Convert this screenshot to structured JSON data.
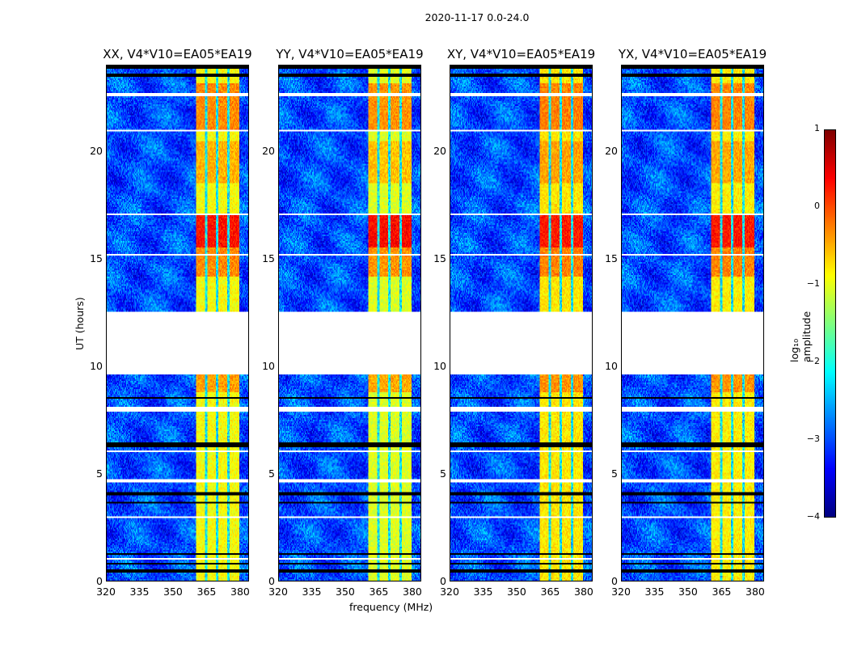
{
  "chart_data": {
    "type": "heatmap",
    "title": "2020-11-17 0.0-24.0",
    "xlabel": "frequency (MHz)",
    "ylabel": "UT (hours)",
    "xlim": [
      320,
      384
    ],
    "ylim": [
      0,
      24
    ],
    "xticks": [
      "320",
      "335",
      "350",
      "365",
      "380"
    ],
    "xtick_values": [
      320,
      335,
      350,
      365,
      380
    ],
    "yticks": [
      "0",
      "5",
      "10",
      "15",
      "20"
    ],
    "ytick_values": [
      0,
      5,
      10,
      15,
      20
    ],
    "panels": [
      {
        "title": "XX, V4*V10=EA05*EA19",
        "strength": 1.0
      },
      {
        "title": "YY, V4*V10=EA05*EA19",
        "strength": 1.15
      },
      {
        "title": "XY, V4*V10=EA05*EA19",
        "strength": 0.85
      },
      {
        "title": "YX, V4*V10=EA05*EA19",
        "strength": 0.9
      }
    ],
    "signal_band_mhz": [
      360.4,
      380.0
    ],
    "subband_edges_mhz": [
      365,
      370,
      375
    ],
    "background_log_amp": -3.0,
    "band_log_amp": -0.9,
    "active_intervals_hours": [
      {
        "range": [
          15.5,
          17.0
        ],
        "log_amp": 0.3
      },
      {
        "range": [
          14.2,
          15.5
        ],
        "log_amp": -0.3
      },
      {
        "range": [
          18.5,
          20.5
        ],
        "log_amp": -0.5
      },
      {
        "range": [
          21.0,
          23.2
        ],
        "log_amp": -0.3
      },
      {
        "range": [
          8.8,
          9.6
        ],
        "log_amp": -0.4
      }
    ],
    "no_data_hours": [
      [
        12.4,
        12.55
      ],
      [
        9.6,
        12.35
      ],
      [
        7.9,
        8.1
      ],
      [
        8.3,
        8.35
      ],
      [
        15.15,
        15.25
      ],
      [
        17.0,
        17.1
      ],
      [
        20.9,
        21.0
      ],
      [
        22.6,
        22.7
      ],
      [
        4.6,
        4.7
      ],
      [
        2.9,
        3.0
      ],
      [
        1.0,
        1.05
      ],
      [
        6.0,
        6.05
      ],
      [
        5.6,
        5.65
      ]
    ],
    "zero_hours": [
      [
        6.2,
        6.45
      ],
      [
        0.4,
        0.55
      ],
      [
        0.75,
        0.85
      ],
      [
        3.6,
        3.7
      ],
      [
        4.0,
        4.1
      ],
      [
        5.15,
        5.2
      ],
      [
        23.5,
        23.6
      ],
      [
        23.85,
        24.0
      ],
      [
        8.5,
        8.55
      ],
      [
        12.35,
        12.4
      ],
      [
        1.2,
        1.25
      ]
    ],
    "colorbar": {
      "label": "log₁₀ amplitude",
      "range": [
        -4,
        1
      ],
      "ticks": [
        "1",
        "0",
        "−1",
        "−2",
        "−3",
        "−4"
      ],
      "tick_values": [
        1,
        0,
        -1,
        -2,
        -3,
        -4
      ],
      "colormap": "jet"
    }
  }
}
